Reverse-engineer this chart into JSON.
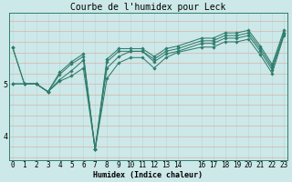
{
  "title": "Courbe de l'humidex pour Leck",
  "xlabel": "Humidex (Indice chaleur)",
  "bg_color": "#cce8e8",
  "line_color": "#2e7d6e",
  "grid_color_v": "#b8d4d4",
  "grid_color_h": "#dba898",
  "x_ticks": [
    0,
    1,
    2,
    3,
    4,
    5,
    6,
    7,
    8,
    9,
    10,
    11,
    12,
    13,
    14,
    16,
    17,
    18,
    19,
    20,
    21,
    22,
    23
  ],
  "y_ticks": [
    4,
    5
  ],
  "ylim": [
    3.55,
    6.35
  ],
  "xlim": [
    -0.3,
    23.3
  ],
  "series": [
    [
      5.7,
      5.0,
      5.0,
      4.85,
      5.05,
      5.15,
      5.3,
      3.75,
      5.1,
      5.4,
      5.5,
      5.5,
      5.3,
      5.5,
      5.6,
      5.7,
      5.7,
      5.8,
      5.8,
      5.85,
      5.55,
      5.2,
      5.92
    ],
    [
      5.7,
      5.0,
      5.0,
      4.85,
      5.08,
      5.25,
      5.45,
      3.75,
      5.3,
      5.52,
      5.62,
      5.62,
      5.42,
      5.57,
      5.62,
      5.77,
      5.77,
      5.87,
      5.87,
      5.92,
      5.62,
      5.27,
      5.95
    ],
    [
      5.0,
      5.0,
      5.0,
      4.85,
      5.18,
      5.38,
      5.52,
      3.75,
      5.42,
      5.62,
      5.62,
      5.62,
      5.47,
      5.62,
      5.67,
      5.82,
      5.82,
      5.92,
      5.92,
      5.97,
      5.67,
      5.32,
      5.97
    ],
    [
      5.0,
      5.0,
      5.0,
      4.85,
      5.22,
      5.42,
      5.57,
      3.75,
      5.47,
      5.67,
      5.67,
      5.67,
      5.52,
      5.67,
      5.72,
      5.87,
      5.87,
      5.97,
      5.97,
      6.02,
      5.72,
      5.37,
      6.02
    ]
  ],
  "x_values": [
    0,
    1,
    2,
    3,
    4,
    5,
    6,
    7,
    8,
    9,
    10,
    11,
    12,
    13,
    14,
    16,
    17,
    18,
    19,
    20,
    21,
    22,
    23
  ],
  "title_fontsize": 7,
  "xlabel_fontsize": 6,
  "tick_fontsize": 5.5,
  "linewidth": 0.75,
  "markersize": 1.8
}
